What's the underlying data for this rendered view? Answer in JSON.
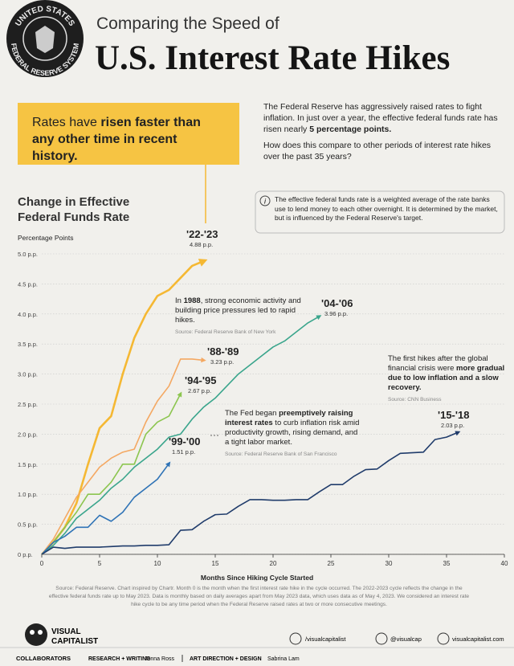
{
  "header": {
    "seal_top": "UNITED STATES",
    "seal_bottom": "FEDERAL RESERVE SYSTEM",
    "kicker": "Comparing the Speed of",
    "title": "U.S. Interest Rate Hikes"
  },
  "callout": {
    "lead": "Rates have",
    "bold": "risen faster than any other time in recent history."
  },
  "intro": {
    "p1": "The Federal Reserve has aggressively raised rates to fight inflation. In just over a year, the effective federal funds rate has risen nearly",
    "p1_bold": "5 percentage points.",
    "p2": "How does this compare to other periods of interest rate hikes over the past 35 years?"
  },
  "info_note": {
    "icon": "i",
    "text": "The effective federal funds rate is a weighted average of the rate banks use to lend money to each other overnight. It is determined by the market, but is influenced by the Federal Reserve's target."
  },
  "chart_data": {
    "type": "line",
    "title": "Change in Effective Federal Funds Rate",
    "y_label": "Percentage Points",
    "x_label": "Months Since Hiking Cycle Started",
    "x": [
      0,
      1,
      2,
      3,
      4,
      5,
      6,
      7,
      8,
      9,
      10,
      11,
      12,
      13,
      14,
      15,
      16,
      17,
      18,
      19,
      20,
      21,
      22,
      23,
      24,
      25,
      26,
      27,
      28,
      29,
      30,
      31,
      32,
      33,
      34,
      35,
      36
    ],
    "xlim": [
      0,
      40
    ],
    "xticks": [
      0,
      5,
      10,
      15,
      20,
      25,
      30,
      35,
      40
    ],
    "ylim": [
      0,
      5
    ],
    "yticks": [
      {
        "value": 0,
        "label": "0 p.p."
      },
      {
        "value": 0.5,
        "label": "0.5 p.p."
      },
      {
        "value": 1,
        "label": "1.0 p.p."
      },
      {
        "value": 1.5,
        "label": "1.5 p.p."
      },
      {
        "value": 2,
        "label": "2.0 p.p."
      },
      {
        "value": 2.5,
        "label": "2.5 p.p."
      },
      {
        "value": 3,
        "label": "3.0 p.p."
      },
      {
        "value": 3.5,
        "label": "3.5 p.p."
      },
      {
        "value": 4,
        "label": "4.0 p.p."
      },
      {
        "value": 4.5,
        "label": "4.5 p.p."
      },
      {
        "value": 5,
        "label": "5.0 p.p."
      }
    ],
    "grid": true,
    "series": [
      {
        "name": "'22-'23",
        "color": "#f5b833",
        "value_label": "4.88 p.p.",
        "values": [
          0,
          0.2,
          0.45,
          0.85,
          1.5,
          2.1,
          2.3,
          3.0,
          3.6,
          4.0,
          4.3,
          4.4,
          4.6,
          4.8,
          4.88,
          null,
          null,
          null,
          null,
          null,
          null,
          null,
          null,
          null,
          null,
          null,
          null,
          null,
          null,
          null,
          null,
          null,
          null,
          null,
          null,
          null,
          null
        ]
      },
      {
        "name": "'88-'89",
        "color": "#f4a862",
        "value_label": "3.23 p.p.",
        "values": [
          0,
          0.25,
          0.6,
          0.95,
          1.2,
          1.45,
          1.6,
          1.7,
          1.75,
          2.2,
          2.55,
          2.8,
          3.25,
          3.25,
          3.23,
          null,
          null,
          null,
          null,
          null,
          null,
          null,
          null,
          null,
          null,
          null,
          null,
          null,
          null,
          null,
          null,
          null,
          null,
          null,
          null,
          null,
          null
        ]
      },
      {
        "name": "'94-'95",
        "color": "#8cc54f",
        "value_label": "2.67 p.p.",
        "values": [
          0,
          0.2,
          0.45,
          0.7,
          1.0,
          1.0,
          1.2,
          1.5,
          1.5,
          2.0,
          2.2,
          2.3,
          2.67,
          null,
          null,
          null,
          null,
          null,
          null,
          null,
          null,
          null,
          null,
          null,
          null,
          null,
          null,
          null,
          null,
          null,
          null,
          null,
          null,
          null,
          null,
          null,
          null
        ]
      },
      {
        "name": "'04-'06",
        "color": "#3aa58c",
        "value_label": "3.96 p.p.",
        "values": [
          0,
          0.15,
          0.35,
          0.6,
          0.75,
          0.9,
          1.1,
          1.25,
          1.45,
          1.6,
          1.75,
          1.95,
          2.0,
          2.25,
          2.45,
          2.6,
          2.8,
          3.0,
          3.15,
          3.3,
          3.45,
          3.55,
          3.7,
          3.85,
          3.96,
          null,
          null,
          null,
          null,
          null,
          null,
          null,
          null,
          null,
          null,
          null,
          null
        ]
      },
      {
        "name": "'99-'00",
        "color": "#2f73b6",
        "value_label": "1.51 p.p.",
        "values": [
          0,
          0.2,
          0.3,
          0.45,
          0.45,
          0.65,
          0.55,
          0.7,
          0.95,
          1.1,
          1.25,
          1.51,
          null,
          null,
          null,
          null,
          null,
          null,
          null,
          null,
          null,
          null,
          null,
          null,
          null,
          null,
          null,
          null,
          null,
          null,
          null,
          null,
          null,
          null,
          null,
          null,
          null
        ]
      },
      {
        "name": "'15-'18",
        "color": "#203c6b",
        "value_label": "2.03 p.p.",
        "values": [
          0,
          0.12,
          0.1,
          0.12,
          0.12,
          0.12,
          0.13,
          0.14,
          0.14,
          0.15,
          0.15,
          0.16,
          0.4,
          0.41,
          0.55,
          0.66,
          0.67,
          0.8,
          0.91,
          0.91,
          0.9,
          0.9,
          0.91,
          0.91,
          1.04,
          1.16,
          1.16,
          1.3,
          1.41,
          1.42,
          1.56,
          1.68,
          1.69,
          1.7,
          1.91,
          1.95,
          2.03
        ]
      }
    ],
    "annotations": [
      {
        "parts": [
          "In ",
          "1988",
          ", strong economic activity and building price pressures led to rapid hikes."
        ],
        "source": "Source: Federal Reserve Bank of New York"
      },
      {
        "parts": [
          "The Fed began ",
          "preemptively raising interest rates",
          " to curb inflation risk amid productivity growth, rising demand, and a tight labor market."
        ],
        "source": "Source: Federal Reserve Bank of San Francisco"
      },
      {
        "parts": [
          "The first hikes after the global financial crisis were ",
          "more gradual due to low inflation and a slow recovery.",
          ""
        ],
        "source": "Source: CNN Business"
      }
    ]
  },
  "footer": {
    "source": "Source: Federal Reserve. Chart inspired by Chartr. Month 0 is the month when the first interest rate hike in the cycle occurred. The 2022-2023 cycle reflects the change in the effective federal funds rate up to May 2023. Data is monthly based on daily averages apart from May 2023 data, which uses data as of May 4, 2023. We considered an interest rate hike cycle to be any time period when the Federal Reserve raised rates at two or more consecutive meetings.",
    "logo_top": "VISUAL",
    "logo_bottom": "CAPITALIST",
    "facebook": "/visualcapitalist",
    "instagram": "@visualcap",
    "website": "visualcapitalist.com",
    "collaborators": "COLLABORATORS",
    "role1": "RESEARCH + WRITING",
    "person1": "Jenna Ross",
    "role2": "ART DIRECTION + DESIGN",
    "person2": "Sabrina Lam"
  }
}
